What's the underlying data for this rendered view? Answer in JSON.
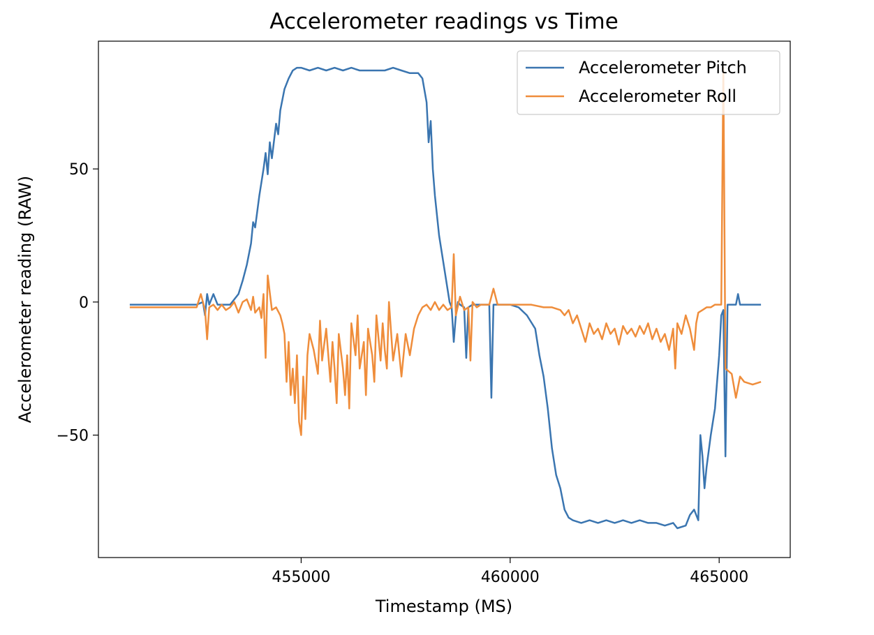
{
  "chart_data": {
    "type": "line",
    "title": "Accelerometer readings vs Time",
    "xlabel": "Timestamp (MS)",
    "ylabel": "Accelerometer reading (RAW)",
    "xlim": [
      450150,
      466700
    ],
    "ylim": [
      -96,
      98
    ],
    "xticks": [
      455000,
      460000,
      465000
    ],
    "xtick_labels": [
      "455000",
      "460000",
      "465000"
    ],
    "yticks": [
      50,
      0,
      -50
    ],
    "ytick_labels": [
      "50",
      "0",
      "−50"
    ],
    "grid": false,
    "legend_position": "upper-right",
    "series": [
      {
        "name": "Accelerometer Pitch",
        "color": "#3a75b0",
        "points": [
          [
            450900,
            -1
          ],
          [
            451500,
            -1
          ],
          [
            452000,
            -1
          ],
          [
            452500,
            -1
          ],
          [
            452650,
            0
          ],
          [
            452700,
            -5
          ],
          [
            452750,
            3
          ],
          [
            452800,
            -1
          ],
          [
            452900,
            3
          ],
          [
            453000,
            -1
          ],
          [
            453300,
            -1
          ],
          [
            453400,
            1
          ],
          [
            453500,
            3
          ],
          [
            453600,
            8
          ],
          [
            453700,
            14
          ],
          [
            453800,
            22
          ],
          [
            453850,
            30
          ],
          [
            453900,
            28
          ],
          [
            454000,
            40
          ],
          [
            454050,
            45
          ],
          [
            454100,
            50
          ],
          [
            454150,
            56
          ],
          [
            454200,
            48
          ],
          [
            454250,
            60
          ],
          [
            454300,
            54
          ],
          [
            454400,
            67
          ],
          [
            454450,
            63
          ],
          [
            454500,
            72
          ],
          [
            454600,
            80
          ],
          [
            454700,
            84
          ],
          [
            454800,
            87
          ],
          [
            454900,
            88
          ],
          [
            455000,
            88
          ],
          [
            455200,
            87
          ],
          [
            455400,
            88
          ],
          [
            455600,
            87
          ],
          [
            455800,
            88
          ],
          [
            456000,
            87
          ],
          [
            456200,
            88
          ],
          [
            456400,
            87
          ],
          [
            456600,
            87
          ],
          [
            456800,
            87
          ],
          [
            457000,
            87
          ],
          [
            457200,
            88
          ],
          [
            457400,
            87
          ],
          [
            457600,
            86
          ],
          [
            457800,
            86
          ],
          [
            457900,
            84
          ],
          [
            458000,
            75
          ],
          [
            458050,
            60
          ],
          [
            458100,
            68
          ],
          [
            458150,
            50
          ],
          [
            458200,
            40
          ],
          [
            458300,
            25
          ],
          [
            458400,
            15
          ],
          [
            458500,
            5
          ],
          [
            458550,
            0
          ],
          [
            458600,
            -2
          ],
          [
            458650,
            -15
          ],
          [
            458700,
            -5
          ],
          [
            458750,
            0
          ],
          [
            458800,
            -1
          ],
          [
            458900,
            -2
          ],
          [
            458950,
            -21
          ],
          [
            459000,
            -2
          ],
          [
            459100,
            -1
          ],
          [
            459300,
            -1
          ],
          [
            459500,
            -1
          ],
          [
            459550,
            -36
          ],
          [
            459600,
            -1
          ],
          [
            459700,
            -1
          ],
          [
            460000,
            -1
          ],
          [
            460200,
            -2
          ],
          [
            460400,
            -5
          ],
          [
            460600,
            -10
          ],
          [
            460700,
            -20
          ],
          [
            460800,
            -28
          ],
          [
            460900,
            -40
          ],
          [
            461000,
            -55
          ],
          [
            461100,
            -65
          ],
          [
            461200,
            -70
          ],
          [
            461300,
            -78
          ],
          [
            461400,
            -81
          ],
          [
            461500,
            -82
          ],
          [
            461700,
            -83
          ],
          [
            461900,
            -82
          ],
          [
            462100,
            -83
          ],
          [
            462300,
            -82
          ],
          [
            462500,
            -83
          ],
          [
            462700,
            -82
          ],
          [
            462900,
            -83
          ],
          [
            463100,
            -82
          ],
          [
            463300,
            -83
          ],
          [
            463500,
            -83
          ],
          [
            463700,
            -84
          ],
          [
            463900,
            -83
          ],
          [
            464000,
            -85
          ],
          [
            464200,
            -84
          ],
          [
            464300,
            -80
          ],
          [
            464400,
            -78
          ],
          [
            464500,
            -82
          ],
          [
            464550,
            -50
          ],
          [
            464600,
            -58
          ],
          [
            464650,
            -70
          ],
          [
            464700,
            -62
          ],
          [
            464800,
            -50
          ],
          [
            464900,
            -40
          ],
          [
            465000,
            -20
          ],
          [
            465050,
            -5
          ],
          [
            465100,
            -3
          ],
          [
            465150,
            -58
          ],
          [
            465200,
            -1
          ],
          [
            465300,
            -1
          ],
          [
            465400,
            -1
          ],
          [
            465450,
            3
          ],
          [
            465500,
            -1
          ],
          [
            466000,
            -1
          ]
        ]
      },
      {
        "name": "Accelerometer Roll",
        "color": "#ef8d3b",
        "points": [
          [
            450900,
            -2
          ],
          [
            451500,
            -2
          ],
          [
            452000,
            -2
          ],
          [
            452500,
            -2
          ],
          [
            452600,
            3
          ],
          [
            452700,
            -3
          ],
          [
            452750,
            -14
          ],
          [
            452800,
            -2
          ],
          [
            452900,
            -1
          ],
          [
            453000,
            -3
          ],
          [
            453100,
            -1
          ],
          [
            453200,
            -3
          ],
          [
            453300,
            -2
          ],
          [
            453400,
            0
          ],
          [
            453500,
            -4
          ],
          [
            453600,
            0
          ],
          [
            453700,
            1
          ],
          [
            453800,
            -3
          ],
          [
            453850,
            2
          ],
          [
            453900,
            -4
          ],
          [
            454000,
            -2
          ],
          [
            454050,
            -6
          ],
          [
            454100,
            3
          ],
          [
            454150,
            -21
          ],
          [
            454200,
            10
          ],
          [
            454300,
            -3
          ],
          [
            454400,
            -2
          ],
          [
            454500,
            -5
          ],
          [
            454550,
            -8
          ],
          [
            454600,
            -12
          ],
          [
            454650,
            -30
          ],
          [
            454700,
            -15
          ],
          [
            454750,
            -35
          ],
          [
            454800,
            -25
          ],
          [
            454850,
            -38
          ],
          [
            454900,
            -20
          ],
          [
            454950,
            -45
          ],
          [
            455000,
            -50
          ],
          [
            455050,
            -28
          ],
          [
            455100,
            -44
          ],
          [
            455150,
            -20
          ],
          [
            455200,
            -12
          ],
          [
            455300,
            -18
          ],
          [
            455400,
            -27
          ],
          [
            455450,
            -7
          ],
          [
            455500,
            -22
          ],
          [
            455600,
            -10
          ],
          [
            455700,
            -30
          ],
          [
            455750,
            -15
          ],
          [
            455800,
            -25
          ],
          [
            455850,
            -38
          ],
          [
            455900,
            -12
          ],
          [
            456000,
            -25
          ],
          [
            456050,
            -35
          ],
          [
            456100,
            -20
          ],
          [
            456150,
            -40
          ],
          [
            456200,
            -8
          ],
          [
            456300,
            -20
          ],
          [
            456350,
            -5
          ],
          [
            456400,
            -25
          ],
          [
            456500,
            -15
          ],
          [
            456550,
            -35
          ],
          [
            456600,
            -10
          ],
          [
            456700,
            -20
          ],
          [
            456750,
            -30
          ],
          [
            456800,
            -5
          ],
          [
            456900,
            -22
          ],
          [
            456950,
            -8
          ],
          [
            457000,
            -18
          ],
          [
            457050,
            -25
          ],
          [
            457100,
            0
          ],
          [
            457200,
            -22
          ],
          [
            457300,
            -12
          ],
          [
            457400,
            -28
          ],
          [
            457500,
            -12
          ],
          [
            457600,
            -20
          ],
          [
            457700,
            -10
          ],
          [
            457800,
            -5
          ],
          [
            457900,
            -2
          ],
          [
            458000,
            -1
          ],
          [
            458100,
            -3
          ],
          [
            458200,
            0
          ],
          [
            458300,
            -3
          ],
          [
            458400,
            -1
          ],
          [
            458500,
            -3
          ],
          [
            458600,
            -2
          ],
          [
            458650,
            18
          ],
          [
            458700,
            -5
          ],
          [
            458800,
            2
          ],
          [
            458900,
            -3
          ],
          [
            459000,
            -2
          ],
          [
            459050,
            -22
          ],
          [
            459100,
            0
          ],
          [
            459200,
            -2
          ],
          [
            459300,
            -1
          ],
          [
            459500,
            -1
          ],
          [
            459600,
            5
          ],
          [
            459700,
            -1
          ],
          [
            460000,
            -1
          ],
          [
            460300,
            -1
          ],
          [
            460500,
            -1
          ],
          [
            460800,
            -2
          ],
          [
            461000,
            -2
          ],
          [
            461200,
            -3
          ],
          [
            461300,
            -5
          ],
          [
            461400,
            -3
          ],
          [
            461500,
            -8
          ],
          [
            461600,
            -5
          ],
          [
            461700,
            -10
          ],
          [
            461800,
            -15
          ],
          [
            461900,
            -8
          ],
          [
            462000,
            -12
          ],
          [
            462100,
            -10
          ],
          [
            462200,
            -14
          ],
          [
            462300,
            -8
          ],
          [
            462400,
            -12
          ],
          [
            462500,
            -10
          ],
          [
            462600,
            -16
          ],
          [
            462700,
            -9
          ],
          [
            462800,
            -12
          ],
          [
            462900,
            -10
          ],
          [
            463000,
            -13
          ],
          [
            463100,
            -9
          ],
          [
            463200,
            -12
          ],
          [
            463300,
            -8
          ],
          [
            463400,
            -14
          ],
          [
            463500,
            -10
          ],
          [
            463600,
            -15
          ],
          [
            463700,
            -12
          ],
          [
            463800,
            -18
          ],
          [
            463900,
            -10
          ],
          [
            463950,
            -25
          ],
          [
            464000,
            -8
          ],
          [
            464100,
            -12
          ],
          [
            464200,
            -5
          ],
          [
            464300,
            -10
          ],
          [
            464400,
            -18
          ],
          [
            464450,
            -8
          ],
          [
            464500,
            -4
          ],
          [
            464600,
            -3
          ],
          [
            464700,
            -2
          ],
          [
            464800,
            -2
          ],
          [
            464900,
            -1
          ],
          [
            465000,
            -1
          ],
          [
            465050,
            -1
          ],
          [
            465100,
            88
          ],
          [
            465150,
            -25
          ],
          [
            465300,
            -27
          ],
          [
            465400,
            -36
          ],
          [
            465500,
            -28
          ],
          [
            465600,
            -30
          ],
          [
            465800,
            -31
          ],
          [
            466000,
            -30
          ]
        ]
      }
    ]
  }
}
